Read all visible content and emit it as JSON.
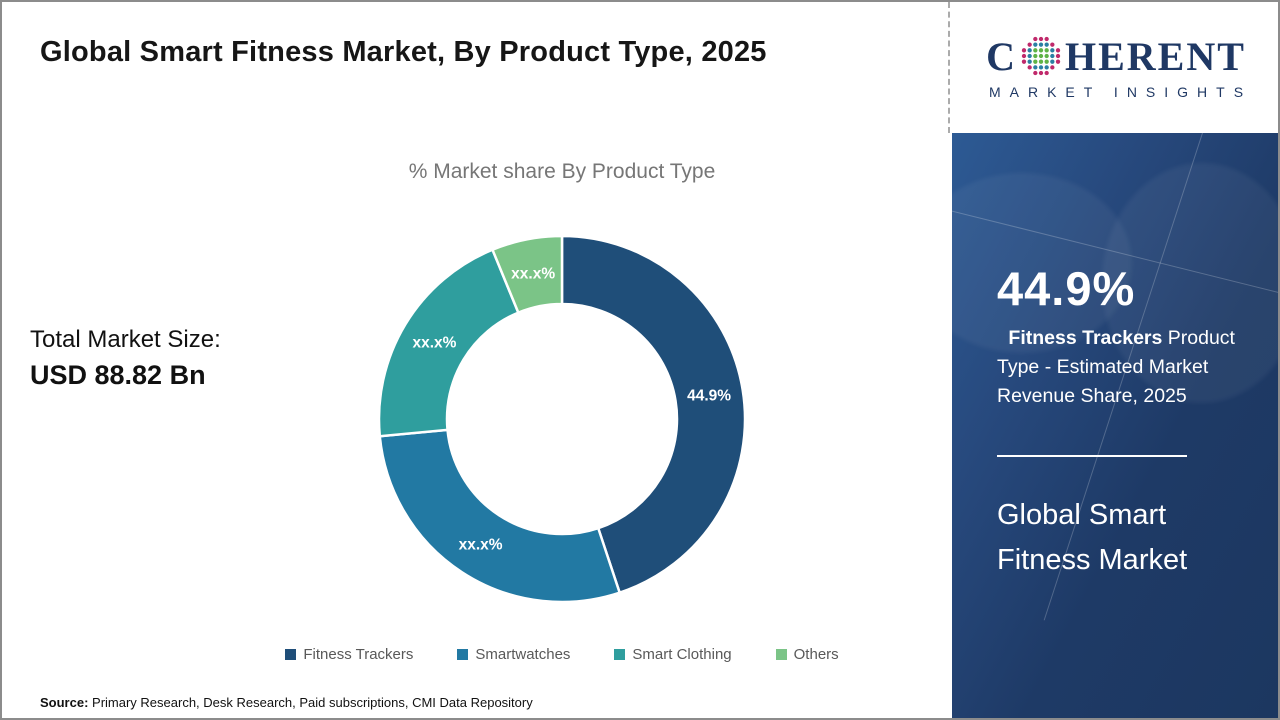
{
  "header": {
    "title": "Global Smart Fitness Market, By Product Type, 2025"
  },
  "market_size": {
    "label": "Total Market Size:",
    "value": "USD 88.82 Bn"
  },
  "chart_data": {
    "type": "donut",
    "title": "% Market share By Product Type",
    "start_angle_deg": 0,
    "direction": "clockwise",
    "hole_ratio": 0.63,
    "legend_position": "bottom",
    "segments": [
      {
        "label": "Fitness Trackers",
        "value": 44.9,
        "display_label": "44.9%",
        "color": "#1F4E79"
      },
      {
        "label": "Smartwatches",
        "value": 28.6,
        "display_label": "xx.x%",
        "color": "#2279A3"
      },
      {
        "label": "Smart Clothing",
        "value": 20.3,
        "display_label": "xx.x%",
        "color": "#2F9E9E"
      },
      {
        "label": "Others",
        "value": 6.2,
        "display_label": "xx.x%",
        "color": "#7BC487"
      }
    ],
    "note": "Only the 44.9% share is printed on the chart; the other slices are masked as xx.x% (values estimated from arc angles)."
  },
  "source": {
    "label": "Source:",
    "text": " Primary Research, Desk Research, Paid subscriptions, CMI Data Repository"
  },
  "logo": {
    "letter_c": "C",
    "letters_rest": "HERENT",
    "subtitle": "MARKET INSIGHTS",
    "brand_color": "#1F3864",
    "globe_dot_colors": {
      "inner": "#5FB346",
      "middle": "#2B7FA3",
      "outer": "#C0296B"
    }
  },
  "sidebar": {
    "stat_value": "44.9%",
    "stat_highlight": " Fitness Trackers",
    "stat_text": " Product Type - Estimated Market Revenue Share, 2025",
    "market_name": "Global Smart Fitness Market",
    "panel_color": "#1E3A66"
  }
}
